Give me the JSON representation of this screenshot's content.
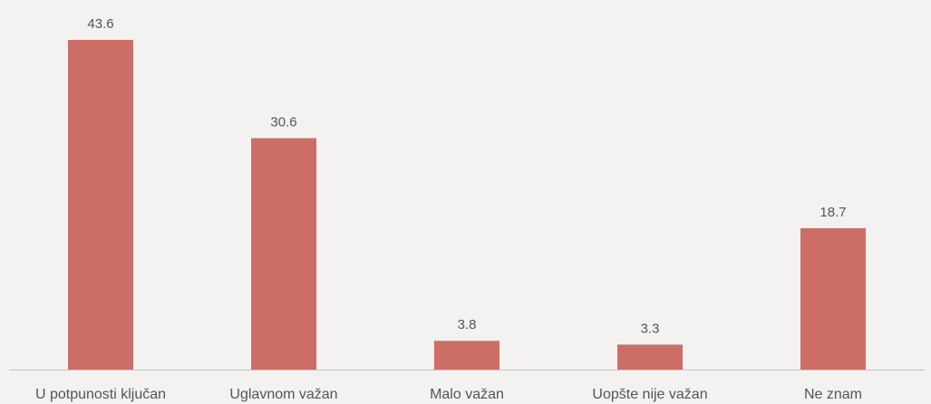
{
  "chart_data": {
    "type": "bar",
    "categories": [
      "U potpunosti ključan",
      "Uglavnom važan",
      "Malo važan",
      "Uopšte nije važan",
      "Ne znam"
    ],
    "values": [
      43.6,
      30.6,
      3.8,
      3.3,
      18.7
    ],
    "color": "#cd6e66"
  }
}
